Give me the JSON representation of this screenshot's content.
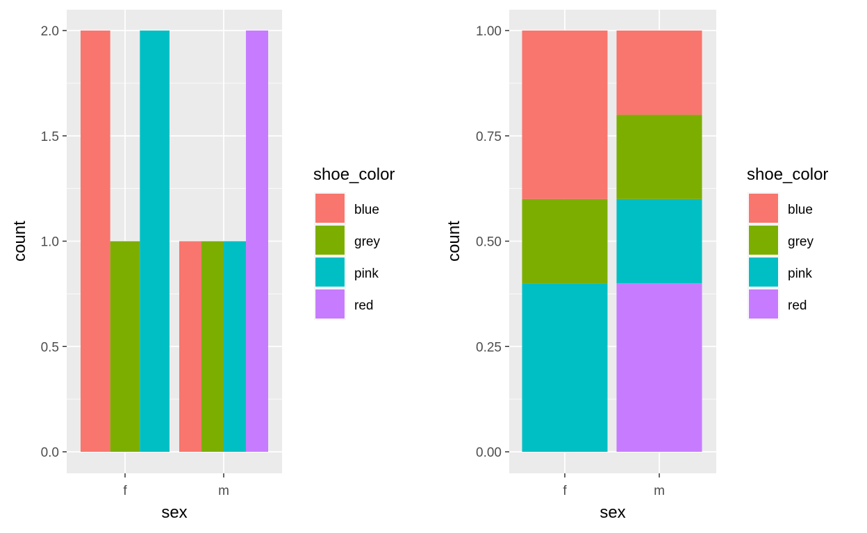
{
  "colors": {
    "panel_bg": "#EBEBEB",
    "grid_major": "#FFFFFF",
    "tick_mark": "#333333"
  },
  "legend": {
    "title": "shoe_color",
    "entries": [
      {
        "label": "blue",
        "color": "#F8766D"
      },
      {
        "label": "grey",
        "color": "#7CAE00"
      },
      {
        "label": "pink",
        "color": "#00BFC4"
      },
      {
        "label": "red",
        "color": "#C77CFF"
      }
    ]
  },
  "chart_data": [
    {
      "type": "bar",
      "position": "dodge",
      "xlabel": "sex",
      "ylabel": "count",
      "categories": [
        "f",
        "m"
      ],
      "ylim": [
        0,
        2
      ],
      "yticks": [
        "0.0",
        "0.5",
        "1.0",
        "1.5",
        "2.0"
      ],
      "bars": [
        {
          "x": "f",
          "groups": [
            {
              "series": "blue",
              "value": 2
            },
            {
              "series": "grey",
              "value": 1
            },
            {
              "series": "pink",
              "value": 2
            }
          ]
        },
        {
          "x": "m",
          "groups": [
            {
              "series": "blue",
              "value": 1
            },
            {
              "series": "grey",
              "value": 1
            },
            {
              "series": "pink",
              "value": 1
            },
            {
              "series": "red",
              "value": 2
            }
          ]
        }
      ],
      "grid": true,
      "legend_position": "right"
    },
    {
      "type": "bar",
      "position": "fill",
      "xlabel": "sex",
      "ylabel": "count",
      "categories": [
        "f",
        "m"
      ],
      "ylim": [
        0,
        1
      ],
      "yticks": [
        "0.00",
        "0.25",
        "0.50",
        "0.75",
        "1.00"
      ],
      "bars": [
        {
          "x": "f",
          "groups": [
            {
              "series": "blue",
              "value": 0.4
            },
            {
              "series": "grey",
              "value": 0.2
            },
            {
              "series": "pink",
              "value": 0.4
            }
          ]
        },
        {
          "x": "m",
          "groups": [
            {
              "series": "blue",
              "value": 0.2
            },
            {
              "series": "grey",
              "value": 0.2
            },
            {
              "series": "pink",
              "value": 0.2
            },
            {
              "series": "red",
              "value": 0.4
            }
          ]
        }
      ],
      "grid": true,
      "legend_position": "right"
    }
  ]
}
